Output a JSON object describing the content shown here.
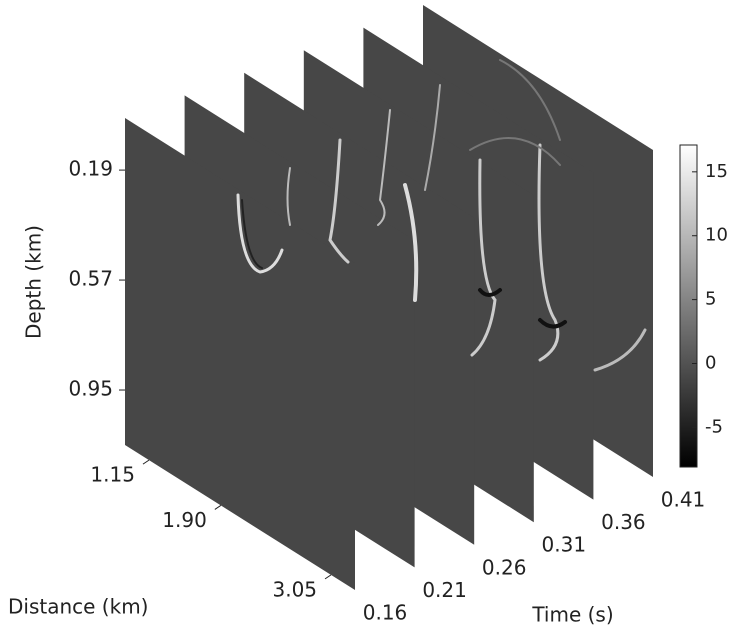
{
  "chart_data": {
    "type": "slices3d",
    "xlabel": "Time (s)",
    "ylabel": "Depth (km)",
    "zlabel": "Distance (km)",
    "xticks": [
      0.16,
      0.21,
      0.26,
      0.31,
      0.36,
      0.41
    ],
    "yticks": [
      0.19,
      0.57,
      0.95
    ],
    "ylim": [
      0.01,
      1.14
    ],
    "zticks": [
      1.15,
      {
        "value": 1.9,
        "label": "1.90"
      },
      3.05
    ],
    "zlim": [
      0.9,
      3.3
    ],
    "slice_color": "#474747",
    "colorbar": {
      "ticks": [
        -5,
        0,
        5,
        10,
        15
      ],
      "lim": [
        -8.1,
        17.1
      ],
      "colors": [
        "#000000",
        "#ffffff"
      ]
    }
  }
}
